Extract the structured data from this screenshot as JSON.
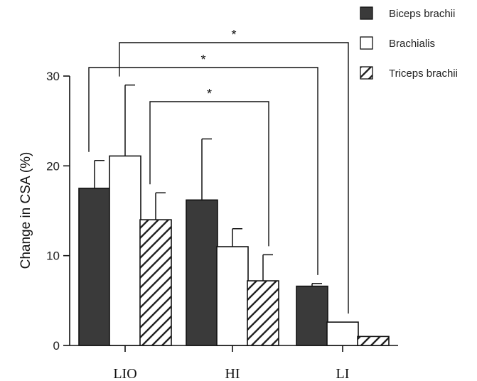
{
  "chart_data": {
    "type": "bar",
    "title": "",
    "xlabel": "",
    "ylabel": "Change in CSA (%)",
    "ylim": [
      0,
      30
    ],
    "yticks": [
      "0",
      "10",
      "20",
      "30"
    ],
    "categories": [
      "LIO",
      "HI",
      "LI"
    ],
    "series": [
      {
        "name": "Biceps brachii",
        "pattern": "solid",
        "color": "#3a3a3a",
        "values": [
          17.5,
          16.2,
          6.6
        ],
        "errors": [
          3.1,
          6.8,
          0.3
        ]
      },
      {
        "name": "Brachialis",
        "pattern": "open",
        "color": "#ffffff",
        "values": [
          21.1,
          11.0,
          2.6
        ],
        "errors": [
          7.9,
          2.0,
          0
        ]
      },
      {
        "name": "Triceps brachii",
        "pattern": "hatched",
        "color": "#ffffff",
        "values": [
          14.0,
          7.2,
          1.0
        ],
        "errors": [
          3.0,
          2.9,
          0
        ]
      }
    ],
    "legend_position": "top-right",
    "grid": false,
    "significance": [
      {
        "label": "*",
        "from": "LIO / Brachialis",
        "to": "LI / Brachialis"
      },
      {
        "label": "*",
        "from": "LIO / Biceps brachii",
        "to": "LI / Biceps brachii"
      },
      {
        "label": "*",
        "from": "LIO / Triceps brachii",
        "to": "HI / Triceps brachii"
      }
    ]
  }
}
